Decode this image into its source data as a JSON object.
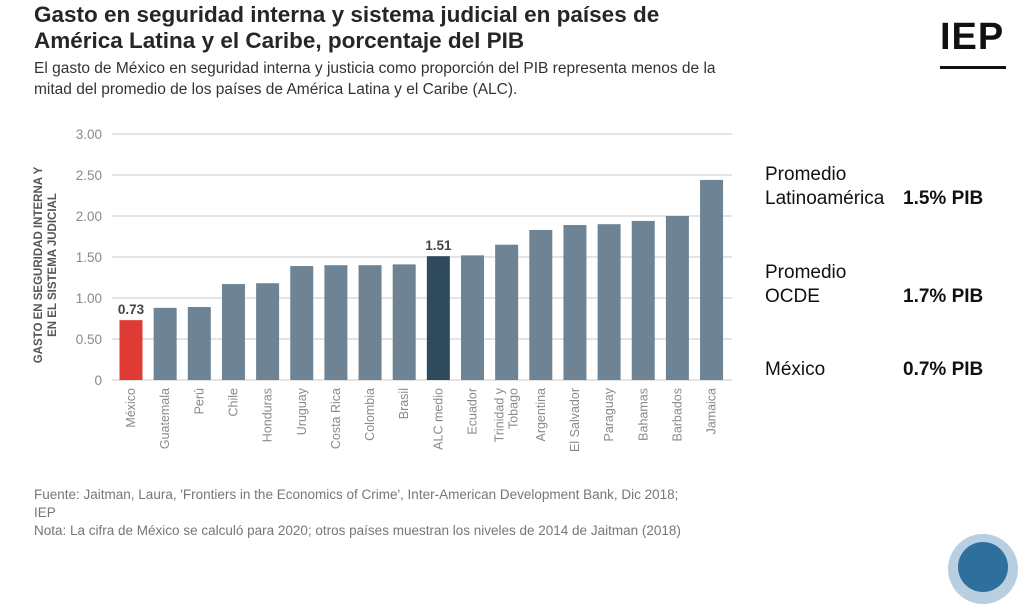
{
  "header": {
    "title": "Gasto en seguridad interna y sistema judicial en países de América Latina y el Caribe, porcentaje del PIB",
    "subtitle": "El gasto de México en seguridad interna y justicia como proporción del PIB representa menos de la mitad del promedio de los países de América Latina y el Caribe (ALC)."
  },
  "logo": {
    "text": "IEP"
  },
  "stats": [
    {
      "label_line1": "Promedio",
      "label_line2": "Latinoamérica",
      "value": "1.5% PIB"
    },
    {
      "label_line1": "Promedio",
      "label_line2": "OCDE",
      "value": "1.7% PIB"
    },
    {
      "label_line1": "México",
      "label_line2": "",
      "value": "0.7% PIB"
    }
  ],
  "footnotes": {
    "source": "Fuente: Jaitman, Laura, 'Frontiers in the Economics of Crime', Inter-American Development Bank, Dic 2018; IEP",
    "note": "Nota: La cifra de México se calculó para 2020; otros países muestran los niveles de 2014 de Jaitman (2018)"
  },
  "colors": {
    "bar_default": "#6e8494",
    "bar_mexico": "#e03a35",
    "bar_alc": "#2f4a5c",
    "grid": "#c8c8c8",
    "tick_text": "#8a8a8a"
  },
  "chart_data": {
    "type": "bar",
    "title": "",
    "xlabel": "",
    "ylabel": "GASTO EN SEGURIDAD INTERNA Y EN EL SISTEMA JUDICIAL",
    "ylim": [
      0,
      3.0
    ],
    "yticks": [
      "0",
      "0.50",
      "1.00",
      "1.50",
      "2.00",
      "2.50",
      "3.00"
    ],
    "ytick_values": [
      0,
      0.5,
      1.0,
      1.5,
      2.0,
      2.5,
      3.0
    ],
    "grid": true,
    "categories": [
      "México",
      "Guatemala",
      "Perú",
      "Chile",
      "Honduras",
      "Uruguay",
      "Costa Rica",
      "Colombia",
      "Brasil",
      "ALC medio",
      "Ecuador",
      "Trinidad y Tobago",
      "Argentina",
      "El Salvador",
      "Paraguay",
      "Bahamas",
      "Barbados",
      "Jamaica"
    ],
    "values": [
      0.73,
      0.88,
      0.89,
      1.17,
      1.18,
      1.39,
      1.4,
      1.4,
      1.41,
      1.51,
      1.52,
      1.65,
      1.83,
      1.89,
      1.9,
      1.94,
      2.0,
      2.44
    ],
    "data_labels": [
      {
        "category": "México",
        "text": "0.73"
      },
      {
        "category": "ALC medio",
        "text": "1.51"
      }
    ]
  }
}
